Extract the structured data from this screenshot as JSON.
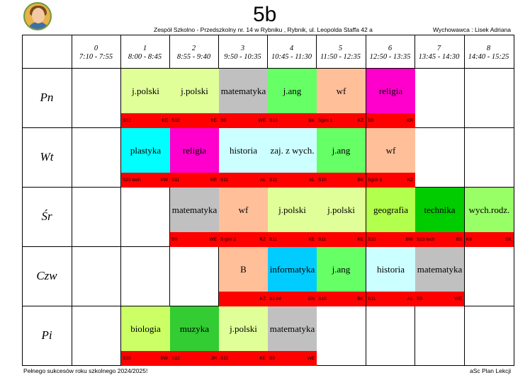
{
  "header": {
    "class_name": "5b",
    "school": "Zespół Szkolno - Przedszkolny nr. 14 w Rybniku  , Rybnik, ul. Leopolda Staffa 42 a",
    "teacher": "Wychowawca : Lisek Adriana"
  },
  "footer": {
    "left": "Pełnego sukcesów roku szkolnego 2024/2025!",
    "right": "aSc Plan Lekcji"
  },
  "periods": [
    {
      "num": "0",
      "time": "7:10 - 7:55"
    },
    {
      "num": "1",
      "time": "8:00 - 8:45"
    },
    {
      "num": "2",
      "time": "8:55 - 9:40"
    },
    {
      "num": "3",
      "time": "9:50 - 10:35"
    },
    {
      "num": "4",
      "time": "10:45 - 11:30"
    },
    {
      "num": "5",
      "time": "11:50 - 12:35"
    },
    {
      "num": "6",
      "time": "12:50 - 13:35"
    },
    {
      "num": "7",
      "time": "13:45 - 14:30"
    },
    {
      "num": "8",
      "time": "14:40 - 15:25"
    }
  ],
  "days": [
    "Pn",
    "Wt",
    "Śr",
    "Czw",
    "Pi"
  ],
  "lessons": [
    {
      "day": 0,
      "period": 1,
      "subject": "j.polski",
      "room": "S12",
      "teacher": "KE",
      "color": "#e0ff99"
    },
    {
      "day": 0,
      "period": 2,
      "subject": "j.polski",
      "room": "S12",
      "teacher": "KE",
      "color": "#e0ff99"
    },
    {
      "day": 0,
      "period": 3,
      "subject": "matematyka",
      "room": "S9",
      "teacher": "WE",
      "color": "#c0c0c0"
    },
    {
      "day": 0,
      "period": 4,
      "subject": "j.ang",
      "room": "S10",
      "teacher": "BK",
      "color": "#66ff66"
    },
    {
      "day": 0,
      "period": 5,
      "subject": "wf",
      "room": "Sgim 1",
      "teacher": "KZ",
      "color": "#ffbf99"
    },
    {
      "day": 0,
      "period": 6,
      "subject": "religia",
      "room": "S9",
      "teacher": "KR",
      "color": "#ff00cc"
    },
    {
      "day": 1,
      "period": 1,
      "subject": "plastyka",
      "room": "S23 tech",
      "teacher": "KW",
      "color": "#00ffff"
    },
    {
      "day": 1,
      "period": 2,
      "subject": "religia",
      "room": "S11",
      "teacher": "KR",
      "color": "#ff00cc"
    },
    {
      "day": 1,
      "period": 3,
      "subject": "historia",
      "room": "S11",
      "teacher": "AL",
      "color": "#ccffff"
    },
    {
      "day": 1,
      "period": 4,
      "subject": "zaj. z wych.",
      "room": "S11",
      "teacher": "AL",
      "color": "#ccffff"
    },
    {
      "day": 1,
      "period": 5,
      "subject": "j.ang",
      "room": "S10",
      "teacher": "BK",
      "color": "#66ff66"
    },
    {
      "day": 1,
      "period": 6,
      "subject": "wf",
      "room": "Sgim 1",
      "teacher": "KZ",
      "color": "#ffbf99"
    },
    {
      "day": 2,
      "period": 2,
      "subject": "matematyka",
      "room": "S9",
      "teacher": "WE",
      "color": "#c0c0c0"
    },
    {
      "day": 2,
      "period": 3,
      "subject": "wf",
      "room": "S gim 2",
      "teacher": "KZ",
      "color": "#ffbf99"
    },
    {
      "day": 2,
      "period": 4,
      "subject": "j.polski",
      "room": "S11",
      "teacher": "KE",
      "color": "#e0ff99"
    },
    {
      "day": 2,
      "period": 5,
      "subject": "j.polski",
      "room": "S11",
      "teacher": "KE",
      "color": "#e0ff99"
    },
    {
      "day": 2,
      "period": 6,
      "subject": "geografia",
      "room": "S10",
      "teacher": "BW",
      "color": "#b3ff4d"
    },
    {
      "day": 2,
      "period": 7,
      "subject": "technika",
      "room": "S23 tech",
      "teacher": "BS",
      "color": "#00cc00"
    },
    {
      "day": 2,
      "period": 8,
      "subject": "wych.rodz.",
      "room": "K6",
      "teacher": "SK",
      "color": "#99ff66"
    },
    {
      "day": 3,
      "period": 3,
      "subject": "B",
      "room": "",
      "teacher": "KZ",
      "color": "#ffbf99"
    },
    {
      "day": 3,
      "period": 4,
      "subject": "informatyka",
      "room": "S2 inf",
      "teacher": "EN",
      "color": "#00ccff"
    },
    {
      "day": 3,
      "period": 5,
      "subject": "j.ang",
      "room": "S10",
      "teacher": "BK",
      "color": "#66ff66"
    },
    {
      "day": 3,
      "period": 6,
      "subject": "historia",
      "room": "S11",
      "teacher": "AL",
      "color": "#ccffff"
    },
    {
      "day": 3,
      "period": 7,
      "subject": "matematyka",
      "room": "S9",
      "teacher": "WE",
      "color": "#c0c0c0"
    },
    {
      "day": 4,
      "period": 1,
      "subject": "biologia",
      "room": "S10",
      "teacher": "BW",
      "color": "#ccff66"
    },
    {
      "day": 4,
      "period": 2,
      "subject": "muzyka",
      "room": "S12",
      "teacher": "JH",
      "color": "#33cc33"
    },
    {
      "day": 4,
      "period": 3,
      "subject": "j.polski",
      "room": "S11",
      "teacher": "KE",
      "color": "#e0ff99"
    },
    {
      "day": 4,
      "period": 4,
      "subject": "matematyka",
      "room": "S9",
      "teacher": "WE",
      "color": "#c0c0c0"
    }
  ]
}
